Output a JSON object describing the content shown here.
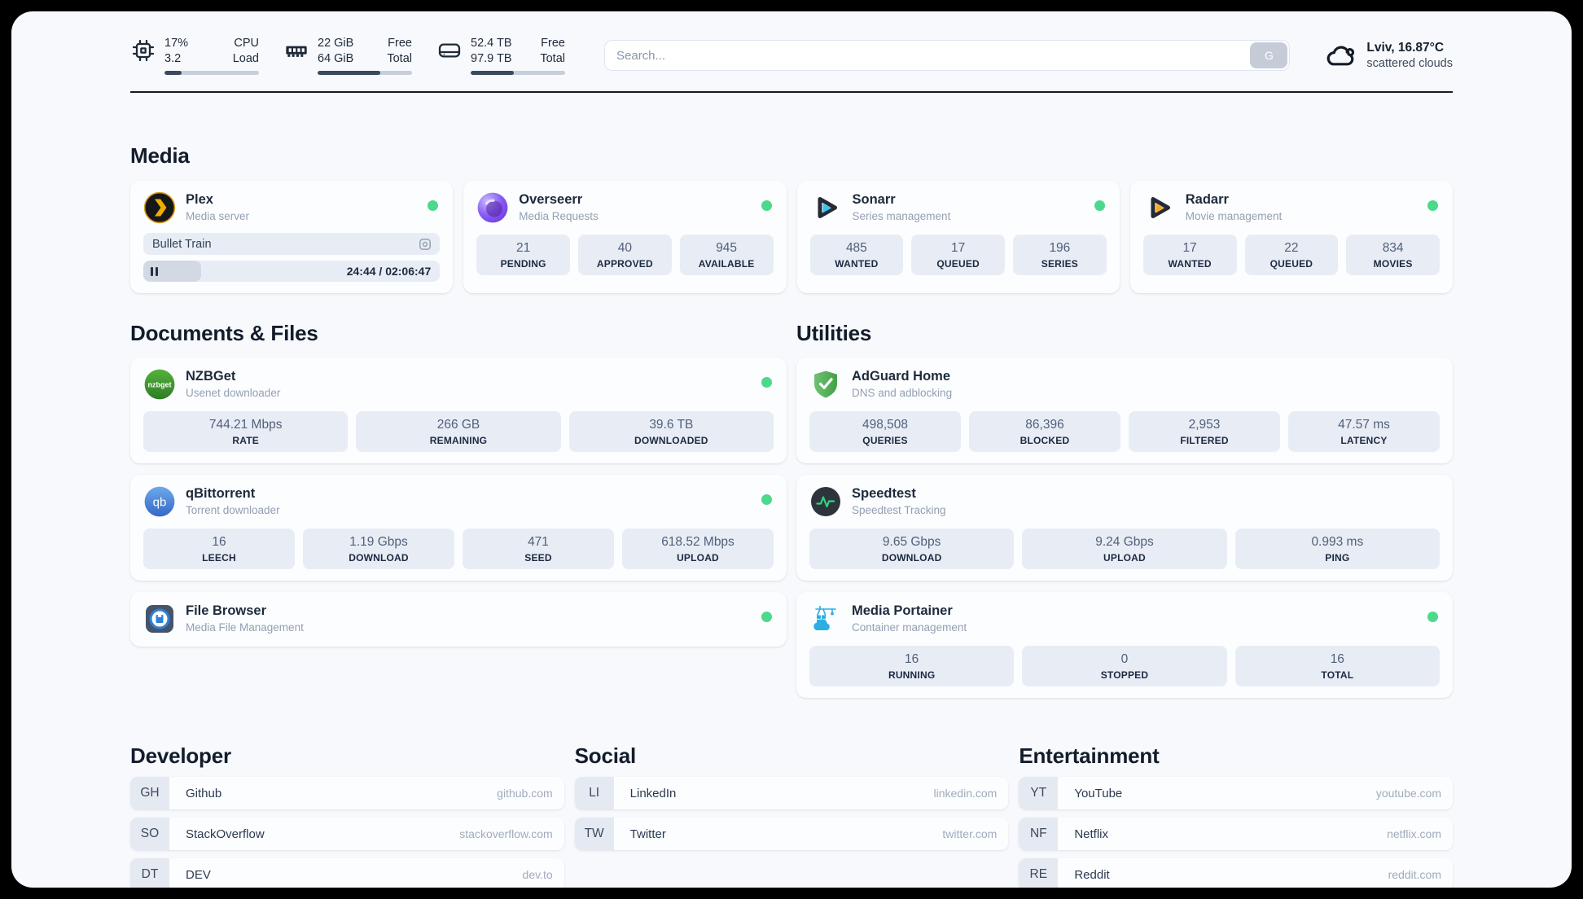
{
  "topbar": {
    "system": [
      {
        "name": "cpu",
        "value_top": "17%",
        "value_bottom": "3.2",
        "label_top": "CPU",
        "label_bottom": "Load",
        "progress_percent": 18
      },
      {
        "name": "memory",
        "value_top": "22 GiB",
        "value_bottom": "64 GiB",
        "label_top": "Free",
        "label_bottom": "Total",
        "progress_percent": 66
      },
      {
        "name": "disk",
        "value_top": "52.4 TB",
        "value_bottom": "97.9 TB",
        "label_top": "Free",
        "label_bottom": "Total",
        "progress_percent": 46
      }
    ],
    "search": {
      "placeholder": "Search...",
      "button_label": "G"
    },
    "weather": {
      "location_temp": "Lviv, 16.87°C",
      "condition": "scattered clouds"
    }
  },
  "section_titles": {
    "media": "Media",
    "documents": "Documents & Files",
    "utilities": "Utilities"
  },
  "apps": {
    "plex": {
      "name": "Plex",
      "description": "Media server",
      "status": "online",
      "now_playing": "Bullet Train",
      "time_display": "24:44 / 02:06:47",
      "progress_percent": 19.5
    },
    "overseerr": {
      "name": "Overseerr",
      "description": "Media Requests",
      "status": "online",
      "stats": [
        {
          "value": "21",
          "label": "PENDING"
        },
        {
          "value": "40",
          "label": "APPROVED"
        },
        {
          "value": "945",
          "label": "AVAILABLE"
        }
      ]
    },
    "sonarr": {
      "name": "Sonarr",
      "description": "Series management",
      "status": "online",
      "stats": [
        {
          "value": "485",
          "label": "WANTED"
        },
        {
          "value": "17",
          "label": "QUEUED"
        },
        {
          "value": "196",
          "label": "SERIES"
        }
      ]
    },
    "radarr": {
      "name": "Radarr",
      "description": "Movie management",
      "status": "online",
      "stats": [
        {
          "value": "17",
          "label": "WANTED"
        },
        {
          "value": "22",
          "label": "QUEUED"
        },
        {
          "value": "834",
          "label": "MOVIES"
        }
      ]
    },
    "nzbget": {
      "name": "NZBGet",
      "description": "Usenet downloader",
      "status": "online",
      "stats": [
        {
          "value": "744.21 Mbps",
          "label": "RATE"
        },
        {
          "value": "266 GB",
          "label": "REMAINING"
        },
        {
          "value": "39.6 TB",
          "label": "DOWNLOADED"
        }
      ]
    },
    "qbittorrent": {
      "name": "qBittorrent",
      "description": "Torrent downloader",
      "status": "online",
      "stats": [
        {
          "value": "16",
          "label": "LEECH"
        },
        {
          "value": "1.19 Gbps",
          "label": "DOWNLOAD"
        },
        {
          "value": "471",
          "label": "SEED"
        },
        {
          "value": "618.52 Mbps",
          "label": "UPLOAD"
        }
      ]
    },
    "filebrowser": {
      "name": "File Browser",
      "description": "Media File Management",
      "status": "online"
    },
    "adguard": {
      "name": "AdGuard Home",
      "description": "DNS and adblocking",
      "stats": [
        {
          "value": "498,508",
          "label": "QUERIES"
        },
        {
          "value": "86,396",
          "label": "BLOCKED"
        },
        {
          "value": "2,953",
          "label": "FILTERED"
        },
        {
          "value": "47.57 ms",
          "label": "LATENCY"
        }
      ]
    },
    "speedtest": {
      "name": "Speedtest",
      "description": "Speedtest Tracking",
      "stats": [
        {
          "value": "9.65 Gbps",
          "label": "DOWNLOAD"
        },
        {
          "value": "9.24 Gbps",
          "label": "UPLOAD"
        },
        {
          "value": "0.993 ms",
          "label": "PING"
        }
      ]
    },
    "portainer": {
      "name": "Media Portainer",
      "description": "Container management",
      "status": "online",
      "stats": [
        {
          "value": "16",
          "label": "RUNNING"
        },
        {
          "value": "0",
          "label": "STOPPED"
        },
        {
          "value": "16",
          "label": "TOTAL"
        }
      ]
    }
  },
  "bookmarks": [
    {
      "title": "Developer",
      "links": [
        {
          "abbr": "GH",
          "name": "Github",
          "domain": "github.com"
        },
        {
          "abbr": "SO",
          "name": "StackOverflow",
          "domain": "stackoverflow.com"
        },
        {
          "abbr": "DT",
          "name": "DEV",
          "domain": "dev.to"
        }
      ]
    },
    {
      "title": "Social",
      "links": [
        {
          "abbr": "LI",
          "name": "LinkedIn",
          "domain": "linkedin.com"
        },
        {
          "abbr": "TW",
          "name": "Twitter",
          "domain": "twitter.com"
        }
      ]
    },
    {
      "title": "Entertainment",
      "links": [
        {
          "abbr": "YT",
          "name": "YouTube",
          "domain": "youtube.com"
        },
        {
          "abbr": "NF",
          "name": "Netflix",
          "domain": "netflix.com"
        },
        {
          "abbr": "RE",
          "name": "Reddit",
          "domain": "reddit.com"
        }
      ]
    }
  ],
  "colors": {
    "status_online": "#4cd98c",
    "progress_fill": "#3c4a5e"
  }
}
